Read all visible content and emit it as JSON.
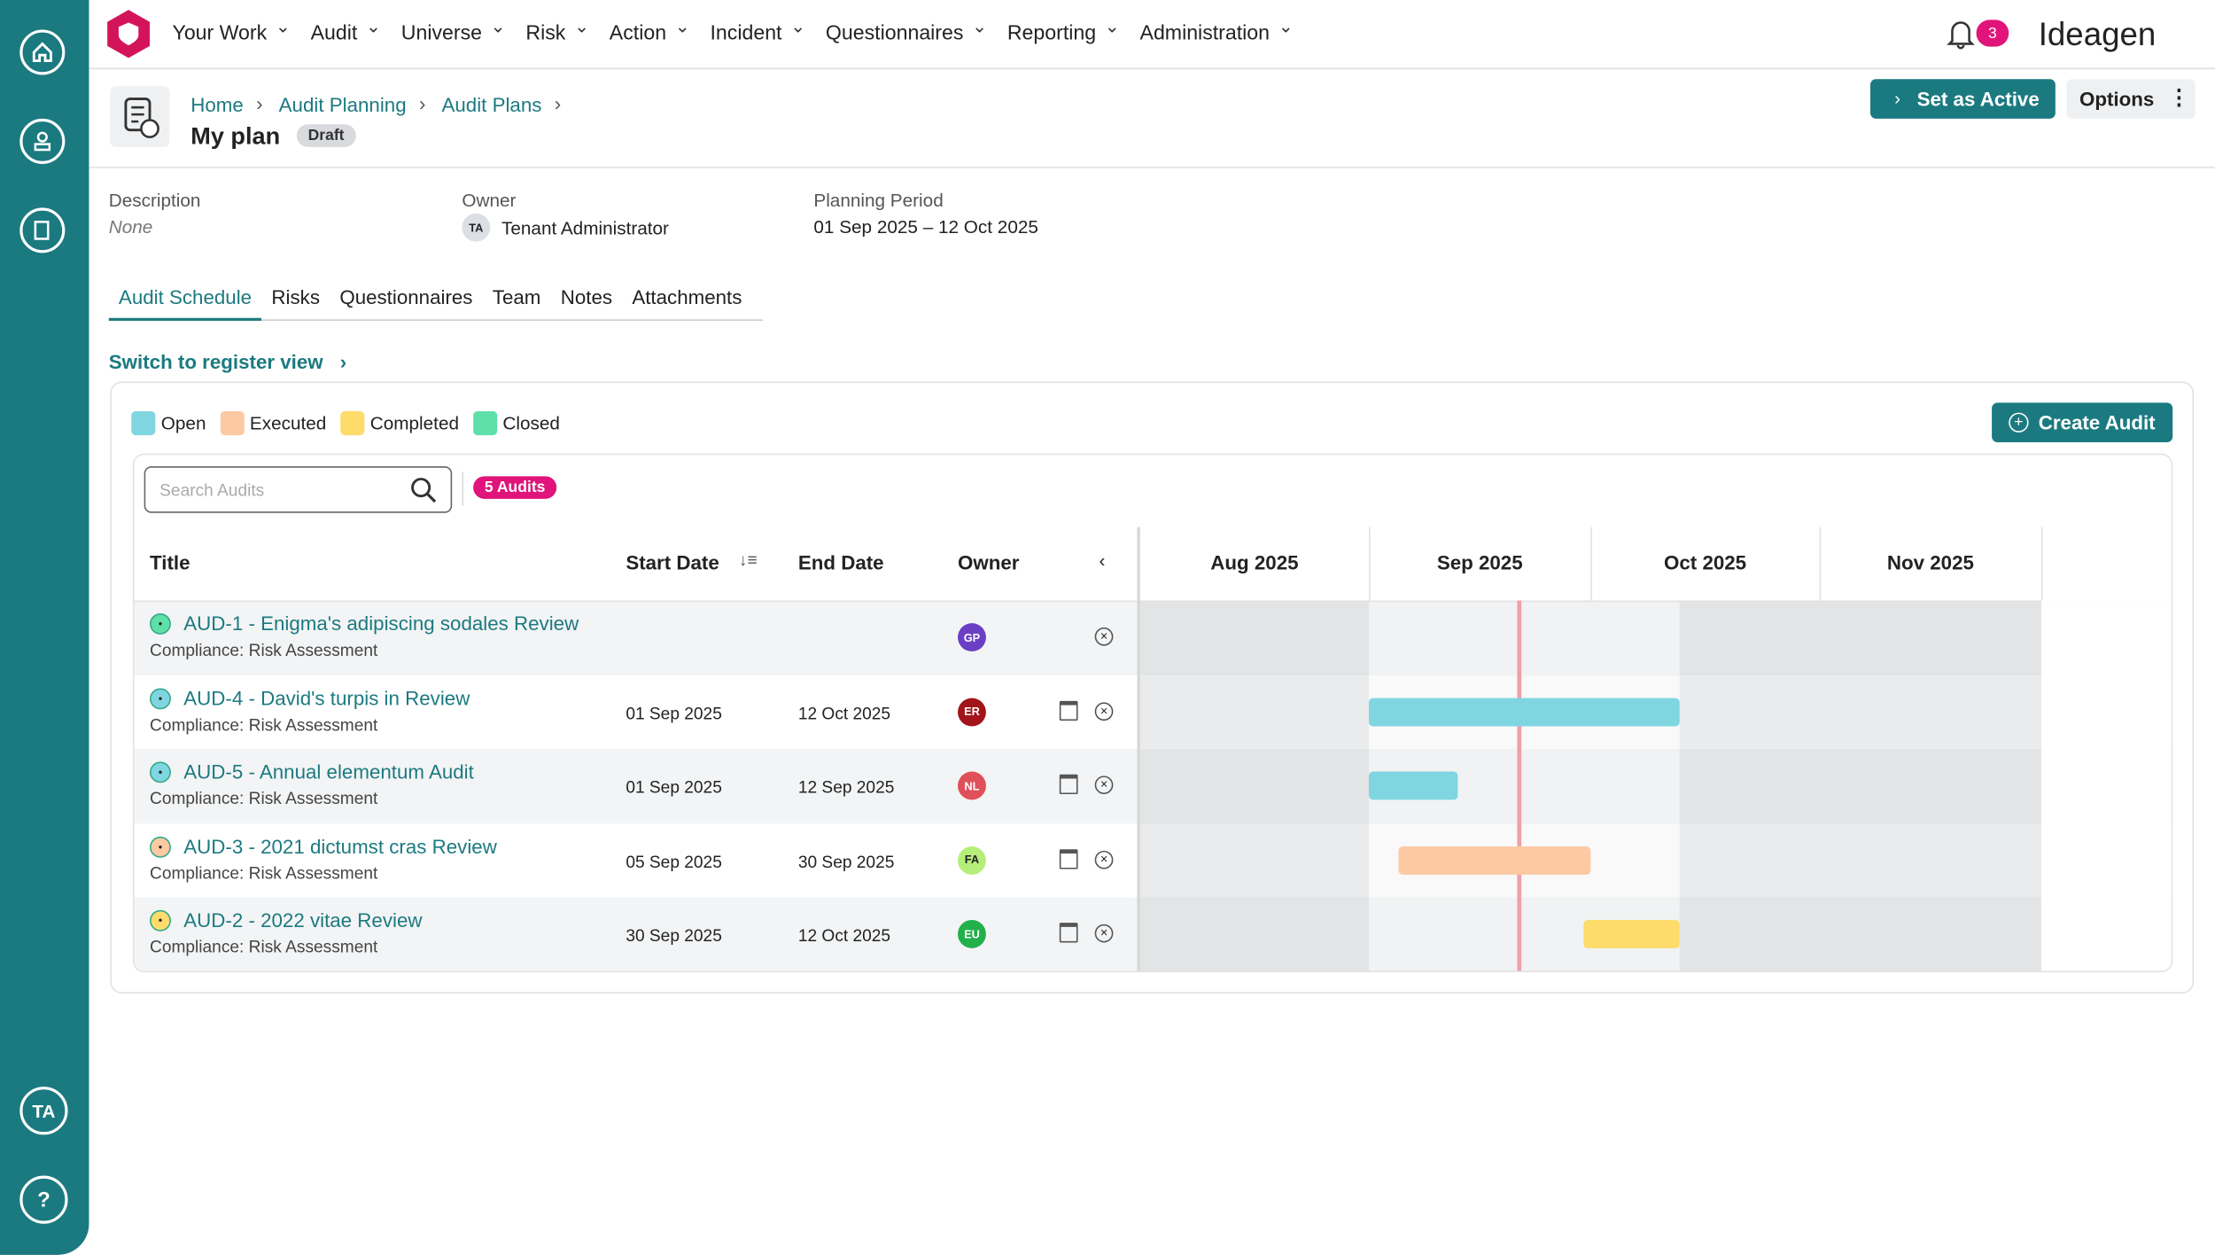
{
  "sidebar": {
    "user": "TA",
    "help": "?"
  },
  "nav": {
    "items": [
      "Your Work",
      "Audit",
      "Universe",
      "Risk",
      "Action",
      "Incident",
      "Questionnaires",
      "Reporting",
      "Administration"
    ],
    "notifications": "3",
    "brand": "Ideagen"
  },
  "header": {
    "breadcrumb": [
      "Home",
      "Audit Planning",
      "Audit Plans"
    ],
    "title": "My plan",
    "status": "Draft",
    "set_active": "Set as Active",
    "options": "Options"
  },
  "details": {
    "description_label": "Description",
    "description": "None",
    "owner_label": "Owner",
    "owner_initials": "TA",
    "owner": "Tenant Administrator",
    "period_label": "Planning Period",
    "period": "01 Sep 2025 – 12 Oct 2025"
  },
  "tabs": [
    "Audit Schedule",
    "Risks",
    "Questionnaires",
    "Team",
    "Notes",
    "Attachments"
  ],
  "switch_view": "Switch to register view",
  "legend": [
    {
      "label": "Open",
      "color": "#7fd6e0"
    },
    {
      "label": "Executed",
      "color": "#fcc9a3"
    },
    {
      "label": "Completed",
      "color": "#fddc6b"
    },
    {
      "label": "Closed",
      "color": "#5ee0a8"
    }
  ],
  "create_audit": "Create Audit",
  "search_placeholder": "Search Audits",
  "count_badge": "5 Audits",
  "table": {
    "columns": [
      "Title",
      "Start Date",
      "End Date",
      "Owner"
    ],
    "months": [
      "Aug 2025",
      "Sep 2025",
      "Oct 2025",
      "Nov 2025"
    ],
    "rows": [
      {
        "title": "AUD-1 - Enigma's adipiscing sodales Review",
        "subtitle": "Compliance: Risk Assessment",
        "start": null,
        "end": null,
        "owner": "GP",
        "owner_color": "#6a3fc4",
        "color": "#5ee0a8"
      },
      {
        "title": "AUD-4 - David's turpis in Review",
        "subtitle": "Compliance: Risk Assessment",
        "start": "01 Sep 2025",
        "end": "12 Oct 2025",
        "owner": "ER",
        "owner_color": "#a3141a",
        "color": "#7fd6e0"
      },
      {
        "title": "AUD-5 - Annual elementum Audit",
        "subtitle": "Compliance: Risk Assessment",
        "start": "01 Sep 2025",
        "end": "12 Sep 2025",
        "owner": "NL",
        "owner_color": "#e0505a",
        "color": "#7fd6e0"
      },
      {
        "title": "AUD-3 - 2021 dictumst cras Review",
        "subtitle": "Compliance: Risk Assessment",
        "start": "05 Sep 2025",
        "end": "30 Sep 2025",
        "owner": "FA",
        "owner_color": "#b5ef7a",
        "color": "#fcc9a3"
      },
      {
        "title": "AUD-2 - 2022 vitae Review",
        "subtitle": "Compliance: Risk Assessment",
        "start": "30 Sep 2025",
        "end": "12 Oct 2025",
        "owner": "EU",
        "owner_color": "#22b04b",
        "color": "#fddc6b"
      }
    ]
  }
}
